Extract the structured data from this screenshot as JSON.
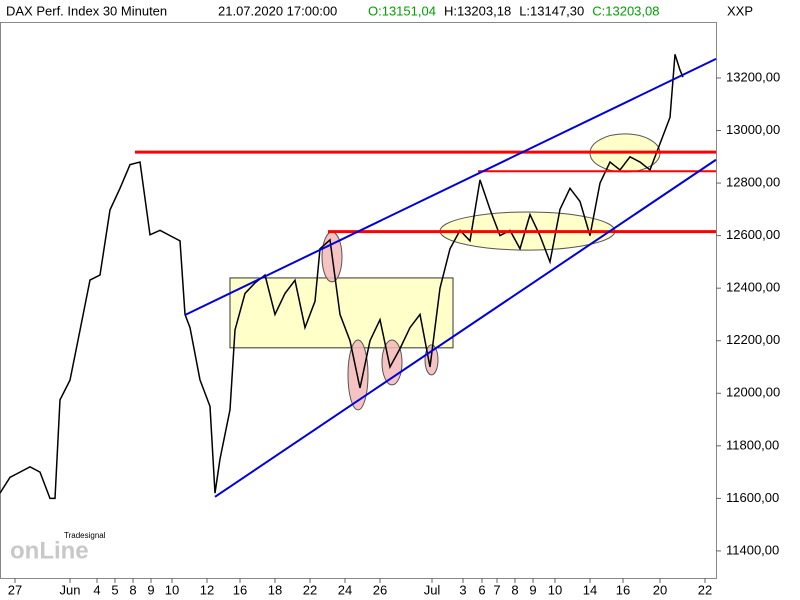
{
  "chart_data": {
    "type": "line",
    "title": "DAX Perf. Index 30 Minuten",
    "timestamp": "21.07.2020 17:00:00",
    "quote": [
      "O:13151,04",
      "H:13203,18",
      "L:13147,30",
      "C:13203,08"
    ],
    "quote_colors": [
      "#00a000",
      "#000000",
      "#000000",
      "#00a000"
    ],
    "symbol": "XXP",
    "logo": [
      "Tradesignal",
      "onLine"
    ],
    "xlim": [
      0,
      71.6
    ],
    "ylim": [
      11297,
      13413
    ],
    "yticks": [
      {
        "value": 11400,
        "label": "11400,00"
      },
      {
        "value": 11600,
        "label": "11600,00"
      },
      {
        "value": 11800,
        "label": "11800,00"
      },
      {
        "value": 12000,
        "label": "12000,00"
      },
      {
        "value": 12200,
        "label": "12200,00"
      },
      {
        "value": 12400,
        "label": "12400,00"
      },
      {
        "value": 12600,
        "label": "12600,00"
      },
      {
        "value": 12800,
        "label": "12800,00"
      },
      {
        "value": 13000,
        "label": "13000,00"
      },
      {
        "value": 13200,
        "label": "13200,00"
      }
    ],
    "xticks": [
      {
        "value": 1.5,
        "label": "27"
      },
      {
        "value": 7,
        "label": "Jun"
      },
      {
        "value": 9.7,
        "label": "4"
      },
      {
        "value": 11.5,
        "label": "5"
      },
      {
        "value": 13.3,
        "label": "8"
      },
      {
        "value": 15.1,
        "label": "9"
      },
      {
        "value": 17.2,
        "label": "10"
      },
      {
        "value": 20.7,
        "label": "12"
      },
      {
        "value": 24,
        "label": "16"
      },
      {
        "value": 27.5,
        "label": "18"
      },
      {
        "value": 31,
        "label": "22"
      },
      {
        "value": 34.5,
        "label": "24"
      },
      {
        "value": 38,
        "label": "26"
      },
      {
        "value": 43.2,
        "label": "Jul"
      },
      {
        "value": 46.3,
        "label": "3"
      },
      {
        "value": 48.2,
        "label": "6"
      },
      {
        "value": 49.7,
        "label": "7"
      },
      {
        "value": 51.5,
        "label": "8"
      },
      {
        "value": 53.3,
        "label": "9"
      },
      {
        "value": 55.5,
        "label": "10"
      },
      {
        "value": 59,
        "label": "14"
      },
      {
        "value": 62.3,
        "label": "16"
      },
      {
        "value": 66,
        "label": "20"
      },
      {
        "value": 70.5,
        "label": "22"
      }
    ],
    "x": [
      0,
      1,
      2,
      3,
      4,
      5,
      5.5,
      6,
      7,
      8,
      9,
      10,
      11,
      12,
      13,
      14,
      15,
      16,
      17,
      18,
      18.5,
      19,
      20,
      21,
      21.5,
      22,
      23,
      23.5,
      24.5,
      25.5,
      26.5,
      27.5,
      28.5,
      29.5,
      30.5,
      31.5,
      32,
      33,
      34,
      35,
      36,
      37,
      38,
      39,
      40,
      41,
      42,
      43,
      44,
      45,
      46,
      47,
      48,
      49,
      50,
      51,
      52,
      53,
      54,
      55,
      56,
      57,
      58,
      59,
      60,
      61,
      62,
      63,
      64,
      65,
      66,
      67,
      67.5,
      68,
      68.3
    ],
    "series": [
      {
        "color": "#000000",
        "values": [
          11620,
          11680,
          11700,
          11720,
          11700,
          11600,
          11600,
          11975,
          12050,
          12240,
          12431,
          12450,
          12698,
          12780,
          12870,
          12880,
          12603,
          12620,
          12600,
          12580,
          12300,
          12250,
          12051,
          11950,
          11620,
          11750,
          11937,
          12241,
          12380,
          12420,
          12450,
          12300,
          12380,
          12430,
          12250,
          12350,
          12550,
          12584,
          12300,
          12200,
          12020,
          12200,
          12280,
          12100,
          12170,
          12250,
          12300,
          12100,
          12400,
          12550,
          12620,
          12580,
          12812,
          12700,
          12600,
          12620,
          12550,
          12680,
          12600,
          12500,
          12700,
          12780,
          12730,
          12600,
          12800,
          12880,
          12850,
          12900,
          12880,
          12850,
          12950,
          13050,
          13290,
          13230,
          13203
        ]
      }
    ],
    "annotations": {
      "lines": [
        {
          "x": [
            13.5,
            72
          ],
          "y": [
            12918,
            12918
          ],
          "color": "#ff0000",
          "width": 3
        },
        {
          "x": [
            47.8,
            72
          ],
          "y": [
            12845,
            12845
          ],
          "color": "#ff0000",
          "width": 2
        },
        {
          "x": [
            32.8,
            72
          ],
          "y": [
            12615,
            12615
          ],
          "color": "#ff0000",
          "width": 3
        },
        {
          "x": [
            18.5,
            72
          ],
          "y": [
            12298,
            13280
          ],
          "color": "#0000dd",
          "width": 2
        },
        {
          "x": [
            21.5,
            72
          ],
          "y": [
            11606,
            12899
          ],
          "color": "#0000dd",
          "width": 2
        }
      ],
      "boxes": [
        {
          "x": [
            23,
            45.3
          ],
          "y": [
            12173,
            12439
          ],
          "color": "#ffffc0"
        }
      ],
      "ellipses": [
        {
          "x": [
            44,
            61.5
          ],
          "y": [
            12545,
            12690
          ],
          "color": "#ffffc0"
        },
        {
          "x": [
            59,
            66
          ],
          "y": [
            12842,
            12987
          ],
          "color": "#ffffc0"
        },
        {
          "x": [
            32.2,
            34.2
          ],
          "y": [
            12424,
            12614
          ],
          "color": "#f4b8b8"
        },
        {
          "x": [
            34.8,
            36.8
          ],
          "y": [
            11937,
            12203
          ],
          "color": "#f4b8b8"
        },
        {
          "x": [
            38.2,
            40.2
          ],
          "y": [
            12032,
            12203
          ],
          "color": "#f4b8b8"
        },
        {
          "x": [
            42.5,
            43.8
          ],
          "y": [
            12070,
            12184
          ],
          "color": "#f4b8b8"
        }
      ]
    }
  }
}
